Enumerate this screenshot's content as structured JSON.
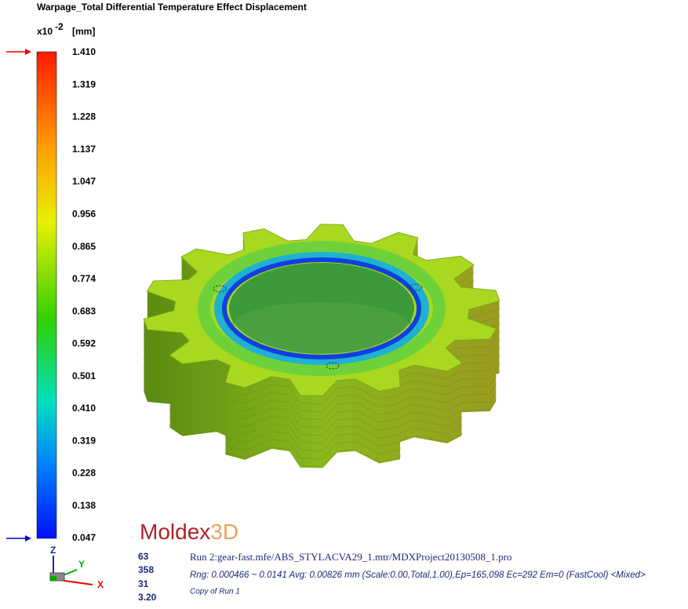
{
  "header": {
    "title": "Warpage_Total Differential Temperature Effect Displacement",
    "scale_prefix": "x10",
    "scale_exponent": "-2",
    "unit": "[mm]"
  },
  "legend": {
    "labels": [
      "1.410",
      "1.319",
      "1.228",
      "1.137",
      "1.047",
      "0.956",
      "0.865",
      "0.774",
      "0.683",
      "0.592",
      "0.501",
      "0.410",
      "0.319",
      "0.228",
      "0.138",
      "0.047"
    ]
  },
  "logo": {
    "name": "Moldex",
    "suffix": "3D"
  },
  "stats": [
    "63",
    "358",
    "31",
    "3.20"
  ],
  "run_info": {
    "run": "Run 2:gear-fast.mfe/ABS_STYLACVA29_1.mtr/MDXProject20130508_1.pro",
    "range": "Rng: 0.000466 ~ 0.0141  Avg: 0.00826 mm (Scale:0.00,Total,1.00),Ep=165,098 Ec=292 Em=0 (FastCool) <Mixed>",
    "copy": "Copy of Run 1"
  },
  "axes": {
    "z": "Z",
    "y": "Y",
    "x": "X"
  }
}
